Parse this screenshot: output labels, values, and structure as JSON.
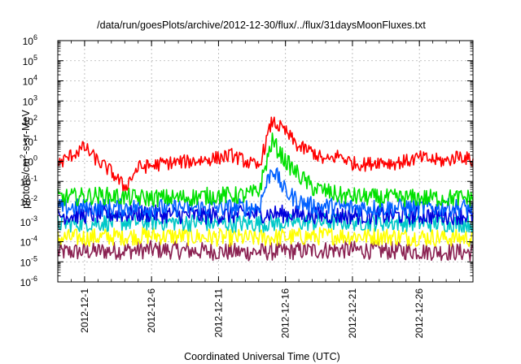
{
  "chart_data": {
    "type": "line",
    "title": "/data/run/goesPlots/archive/2012-12-30/flux/../flux/31daysMoonFluxes.txt",
    "xlabel": "Coordinated Universal Time (UTC)",
    "ylabel": {
      "prefix": "protons/cm",
      "superscript": "2",
      "suffix": "-s-sr-MeV"
    },
    "y_scale": "log",
    "ylim_exponents": [
      -6,
      6
    ],
    "y_tick_base": "10",
    "y_tick_exponents": [
      "-6",
      "-5",
      "-4",
      "-3",
      "-2",
      "-1",
      "0",
      "1",
      "2",
      "3",
      "4",
      "5",
      "6"
    ],
    "xlim": [
      "2012-11-29",
      "2012-12-30"
    ],
    "x_ticks": [
      {
        "date": "2012-12-01",
        "label": "2012-12-1"
      },
      {
        "date": "2012-12-06",
        "label": "2012-12-6"
      },
      {
        "date": "2012-12-11",
        "label": "2012-12-11"
      },
      {
        "date": "2012-12-16",
        "label": "2012-12-16"
      },
      {
        "date": "2012-12-21",
        "label": "2012-12-21"
      },
      {
        "date": "2012-12-26",
        "label": "2012-12-26"
      }
    ],
    "grid": true,
    "legend": "none",
    "series": [
      {
        "color": "#ff0000",
        "x": [
          "2012-11-29",
          "2012-11-30",
          "2012-12-01",
          "2012-12-02",
          "2012-12-03",
          "2012-12-04",
          "2012-12-05",
          "2012-12-06",
          "2012-12-07",
          "2012-12-08",
          "2012-12-09",
          "2012-12-10",
          "2012-12-11",
          "2012-12-12",
          "2012-12-13",
          "2012-12-14",
          "2012-12-15",
          "2012-12-16",
          "2012-12-17",
          "2012-12-18",
          "2012-12-19",
          "2012-12-20",
          "2012-12-21",
          "2012-12-22",
          "2012-12-23",
          "2012-12-24",
          "2012-12-25",
          "2012-12-26",
          "2012-12-27",
          "2012-12-28",
          "2012-12-29",
          "2012-12-30"
        ],
        "y": [
          0.7,
          2,
          5,
          1,
          0.3,
          0.05,
          0.5,
          0.6,
          0.8,
          0.9,
          1,
          1.2,
          1.5,
          2,
          1,
          0.5,
          100,
          30,
          5,
          3,
          1,
          2,
          0.8,
          0.7,
          1,
          0.8,
          1,
          1.5,
          1.2,
          1,
          2,
          1
        ]
      },
      {
        "color": "#00e000",
        "x": [
          "2012-11-29",
          "2012-12-02",
          "2012-12-05",
          "2012-12-08",
          "2012-12-11",
          "2012-12-13",
          "2012-12-14",
          "2012-12-15",
          "2012-12-16",
          "2012-12-17",
          "2012-12-18",
          "2012-12-20",
          "2012-12-23",
          "2012-12-26",
          "2012-12-30"
        ],
        "y": [
          0.015,
          0.02,
          0.015,
          0.015,
          0.02,
          0.02,
          0.03,
          10,
          1,
          0.2,
          0.05,
          0.02,
          0.015,
          0.015,
          0.015
        ]
      },
      {
        "color": "#0060ff",
        "x": [
          "2012-11-29",
          "2012-12-05",
          "2012-12-11",
          "2012-12-14",
          "2012-12-15",
          "2012-12-16",
          "2012-12-17",
          "2012-12-18",
          "2012-12-22",
          "2012-12-30"
        ],
        "y": [
          0.005,
          0.005,
          0.005,
          0.005,
          0.5,
          0.03,
          0.01,
          0.006,
          0.005,
          0.005
        ]
      },
      {
        "color": "#0000dd",
        "x": [
          "2012-11-29",
          "2012-12-05",
          "2012-12-10",
          "2012-12-15",
          "2012-12-20",
          "2012-12-25",
          "2012-12-30"
        ],
        "y": [
          0.002,
          0.0025,
          0.002,
          0.0025,
          0.002,
          0.002,
          0.002
        ]
      },
      {
        "color": "#00c8c8",
        "x": [
          "2012-11-29",
          "2012-12-06",
          "2012-12-13",
          "2012-12-20",
          "2012-12-30"
        ],
        "y": [
          0.0008,
          0.001,
          0.0008,
          0.001,
          0.0008
        ]
      },
      {
        "color": "#ffff00",
        "x": [
          "2012-11-29",
          "2012-12-06",
          "2012-12-13",
          "2012-12-20",
          "2012-12-30"
        ],
        "y": [
          0.00015,
          0.0002,
          0.00015,
          0.0002,
          0.00015
        ]
      },
      {
        "color": "#8b2252",
        "x": [
          "2012-11-29",
          "2012-12-06",
          "2012-12-13",
          "2012-12-20",
          "2012-12-30"
        ],
        "y": [
          3e-05,
          4e-05,
          3e-05,
          4e-05,
          3e-05
        ]
      }
    ]
  }
}
